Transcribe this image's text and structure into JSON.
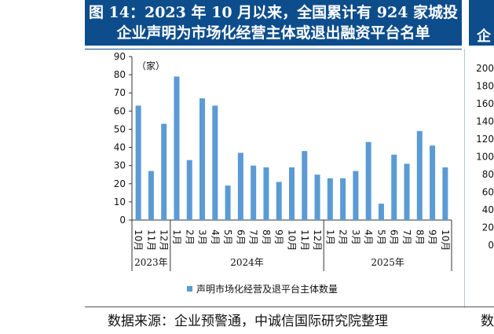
{
  "header": {
    "title_line1": "图 14：2023 年 10 月以来，全国累计有 924 家城投",
    "title_line2": "企业声明为市场化经营主体或退出融资平台名单",
    "right_fragment": "企"
  },
  "footer": {
    "source": "数据来源：企业预警通，中诚信国际研究院整理",
    "source_right_fragment": "数"
  },
  "colors": {
    "bar": "#5b9bd5",
    "title_bg": "#0d4d8c"
  },
  "chart_data": {
    "type": "bar",
    "unit_label": "（家）",
    "yticks": [
      "0",
      "10",
      "20",
      "30",
      "40",
      "50",
      "60",
      "70",
      "80",
      "90"
    ],
    "ylim": [
      0,
      90
    ],
    "right_axis_ticks": [
      "0",
      "20",
      "40",
      "60",
      "80",
      "100",
      "120",
      "140",
      "160",
      "180",
      "200"
    ],
    "categories": [
      "10月",
      "11月",
      "12月",
      "1月",
      "2月",
      "3月",
      "4月",
      "5月",
      "6月",
      "7月",
      "8月",
      "9月",
      "10月",
      "11月",
      "12月",
      "1月",
      "2月",
      "3月",
      "4月",
      "5月",
      "6月",
      "7月",
      "8月",
      "9月",
      "10月"
    ],
    "years": [
      {
        "label": "2023年",
        "start": 0,
        "end": 2
      },
      {
        "label": "2024年",
        "start": 3,
        "end": 14
      },
      {
        "label": "2025年",
        "start": 15,
        "end": 24
      }
    ],
    "series": [
      {
        "name": "声明市场化经营及退平台主体数量",
        "values": [
          63,
          27,
          53,
          79,
          33,
          67,
          63,
          19,
          37,
          30,
          29,
          21,
          29,
          38,
          25,
          23,
          23,
          27,
          43,
          9,
          36,
          31,
          49,
          41,
          29
        ]
      }
    ],
    "grid": false,
    "legend_position": "bottom"
  }
}
